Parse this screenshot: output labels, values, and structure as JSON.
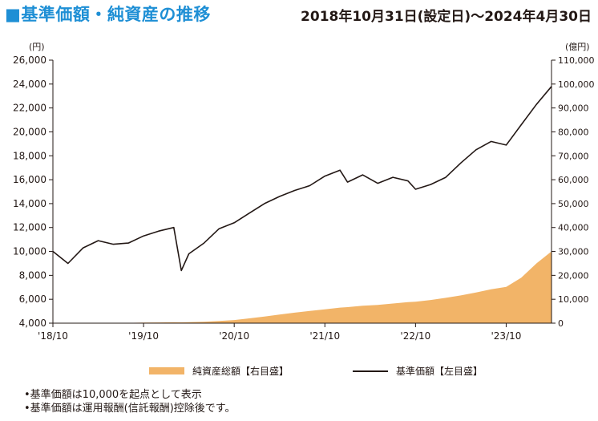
{
  "header": {
    "title": "■基準価額・純資産の推移",
    "period": "2018年10月31日(設定日)〜2024年4月30日"
  },
  "chart_data": {
    "type": "line",
    "left_unit": "(円)",
    "right_unit": "(億円)",
    "x_ticks": [
      "'18/10",
      "'19/10",
      "'20/10",
      "'21/10",
      "'22/10",
      "'23/10"
    ],
    "x_tick_dates": [
      "2018-10",
      "2019-10",
      "2020-10",
      "2021-10",
      "2022-10",
      "2023-10"
    ],
    "y_left_ticks": [
      "4,000",
      "6,000",
      "8,000",
      "10,000",
      "12,000",
      "14,000",
      "16,000",
      "18,000",
      "20,000",
      "22,000",
      "24,000",
      "26,000"
    ],
    "y_right_ticks": [
      "0",
      "10,000",
      "20,000",
      "30,000",
      "40,000",
      "50,000",
      "60,000",
      "70,000",
      "80,000",
      "90,000",
      "100,000",
      "110,000"
    ],
    "ylim_left": [
      4000,
      26000
    ],
    "ylim_right": [
      0,
      110000
    ],
    "x_dates": [
      "2018-10",
      "2018-12",
      "2019-02",
      "2019-04",
      "2019-06",
      "2019-08",
      "2019-10",
      "2019-12",
      "2020-02",
      "2020-03",
      "2020-04",
      "2020-06",
      "2020-08",
      "2020-10",
      "2020-12",
      "2021-02",
      "2021-04",
      "2021-06",
      "2021-08",
      "2021-10",
      "2021-12",
      "2022-01",
      "2022-03",
      "2022-05",
      "2022-07",
      "2022-09",
      "2022-10",
      "2022-12",
      "2023-02",
      "2023-04",
      "2023-06",
      "2023-08",
      "2023-10",
      "2023-12",
      "2024-02",
      "2024-04"
    ],
    "series": [
      {
        "name": "基準価額【左目盛】",
        "axis": "left",
        "color": "#231815",
        "values": [
          10000,
          9000,
          10300,
          10900,
          10600,
          10700,
          11300,
          11700,
          12000,
          8400,
          9800,
          10700,
          11900,
          12400,
          13200,
          14000,
          14600,
          15100,
          15500,
          16300,
          16800,
          15800,
          16400,
          15700,
          16200,
          15900,
          15200,
          15600,
          16200,
          17400,
          18500,
          19200,
          18900,
          20600,
          22300,
          23800
        ]
      },
      {
        "name": "純資産総額【右目盛】",
        "axis": "right",
        "color": "#f2b468",
        "values": [
          0,
          10,
          30,
          60,
          100,
          150,
          220,
          300,
          380,
          350,
          450,
          600,
          900,
          1300,
          2000,
          2800,
          3600,
          4400,
          5100,
          5800,
          6500,
          6700,
          7300,
          7600,
          8200,
          8800,
          9000,
          9700,
          10600,
          11600,
          12800,
          14200,
          15200,
          19000,
          25000,
          30000
        ]
      }
    ],
    "grid": false,
    "legend_position": "bottom"
  },
  "legend": {
    "fund_label": "純資産総額【右目盛】",
    "price_label": "基準価額【左目盛】"
  },
  "notes": [
    "•基準価額は10,000を起点として表示",
    "•基準価額は運用報酬(信託報酬)控除後です。"
  ]
}
